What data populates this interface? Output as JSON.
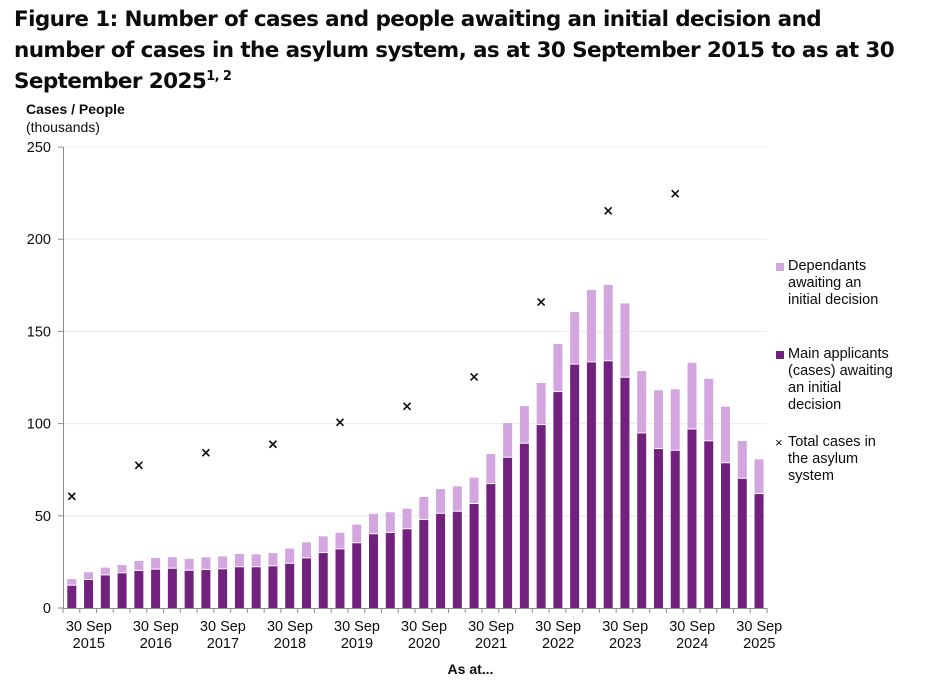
{
  "title": {
    "text": "Figure 1: Number of cases and people awaiting an initial decision and number of cases in the asylum system, as at 30 September 2015 to as at 30 September 2025",
    "footnote_refs": "1, 2"
  },
  "colors": {
    "main_applicants": "#72217f",
    "dependants": "#d4a6e0",
    "cross": "#0b0c0c",
    "axis": "#8c8c8c",
    "grid": "#ececec"
  },
  "chart_data": {
    "type": "bar",
    "stacked": true,
    "title": "Figure 1: Number of cases and people awaiting an initial decision and number of cases in the asylum system, as at 30 September 2015 to as at 30 September 2025",
    "ylabel": "Cases / People",
    "ylabel_unit": "(thousands)",
    "xlabel": "As at...",
    "ylim": [
      0,
      250
    ],
    "yticks": [
      0,
      50,
      100,
      150,
      200,
      250
    ],
    "grid": true,
    "legend_position": "right",
    "x_tick_labels": [
      {
        "line1": "30 Sep",
        "line2": "2015"
      },
      {
        "line1": "30 Sep",
        "line2": "2016"
      },
      {
        "line1": "30 Sep",
        "line2": "2017"
      },
      {
        "line1": "30 Sep",
        "line2": "2018"
      },
      {
        "line1": "30 Sep",
        "line2": "2019"
      },
      {
        "line1": "30 Sep",
        "line2": "2020"
      },
      {
        "line1": "30 Sep",
        "line2": "2021"
      },
      {
        "line1": "30 Sep",
        "line2": "2022"
      },
      {
        "line1": "30 Sep",
        "line2": "2023"
      },
      {
        "line1": "30 Sep",
        "line2": "2024"
      },
      {
        "line1": "30 Sep",
        "line2": "2025"
      }
    ],
    "bar_count": 42,
    "series": [
      {
        "name": "Main applicants (cases) awaiting an initial decision",
        "legend_lines": [
          "Main applicants",
          "(cases) awaiting",
          "an initial",
          "decision"
        ],
        "kind": "bar",
        "values": [
          12.1,
          15.2,
          17.7,
          18.8,
          20.1,
          20.8,
          21.3,
          20.2,
          20.6,
          21.0,
          22.1,
          22.1,
          22.6,
          24.0,
          26.9,
          29.8,
          31.8,
          35.1,
          40.0,
          40.7,
          42.7,
          47.7,
          51.1,
          52.2,
          56.4,
          67.2,
          81.5,
          89.1,
          99.2,
          117.1,
          132.0,
          133.2,
          133.8,
          124.9,
          94.7,
          86.2,
          85.3,
          96.8,
          90.4,
          78.5,
          70.1,
          61.8
        ]
      },
      {
        "name": "Dependants awaiting an initial decision",
        "legend_lines": [
          "Dependants",
          "awaiting an",
          "initial decision"
        ],
        "kind": "bar",
        "values": [
          3.6,
          4.2,
          4.2,
          4.5,
          5.4,
          6.3,
          6.3,
          6.5,
          6.9,
          7.0,
          7.2,
          7.0,
          7.2,
          8.2,
          8.7,
          9.1,
          9.0,
          10.1,
          11.1,
          11.2,
          11.2,
          12.5,
          13.4,
          13.8,
          14.3,
          16.3,
          18.8,
          20.4,
          22.8,
          26.1,
          28.5,
          39.3,
          41.4,
          40.3,
          33.8,
          31.9,
          33.3,
          36.2,
          33.9,
          30.7,
          20.5,
          18.8
        ]
      },
      {
        "name": "Total cases in the asylum system",
        "legend_lines": [
          "Total cases in",
          "the asylum",
          "system"
        ],
        "kind": "scatter",
        "marker": "x",
        "x_years": [
          "2015",
          "2016",
          "2017",
          "2018",
          "2019",
          "2020",
          "2021",
          "2022",
          "2023",
          "2024"
        ],
        "bar_index": [
          0,
          4,
          8,
          12,
          16,
          20,
          24,
          28,
          32,
          36
        ],
        "values": [
          60.6,
          77.4,
          84.2,
          88.8,
          100.7,
          109.4,
          125.3,
          165.9,
          215.4,
          224.7
        ]
      }
    ]
  },
  "legend": {
    "dependants": {
      "label_lines": [
        "Dependants",
        "awaiting an",
        "initial decision"
      ]
    },
    "main": {
      "label_lines": [
        "Main applicants",
        "(cases) awaiting",
        "an initial",
        "decision"
      ]
    },
    "total": {
      "symbol": "×",
      "label_lines": [
        "Total cases in",
        "the asylum",
        "system"
      ]
    }
  },
  "ylabel": {
    "bold": "Cases / People",
    "unit": "(thousands)"
  },
  "xtitle": "As at..."
}
